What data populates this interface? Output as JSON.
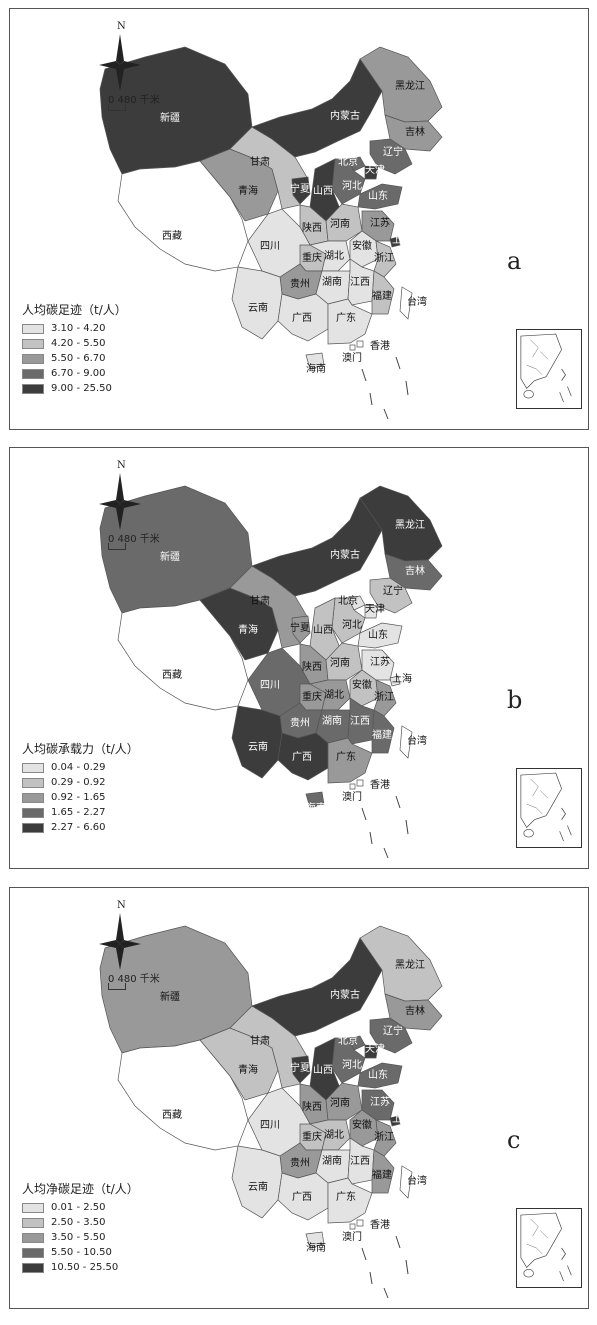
{
  "compass_label": "N",
  "scale_label": "0 480 千米",
  "provinces": [
    "新疆",
    "西藏",
    "青海",
    "甘肃",
    "内蒙古",
    "黑龙江",
    "吉林",
    "辽宁",
    "北京",
    "天津",
    "河北",
    "山西",
    "山东",
    "宁夏",
    "陕西",
    "河南",
    "江苏",
    "安徽",
    "上海",
    "四川",
    "重庆",
    "湖北",
    "浙江",
    "贵州",
    "湖南",
    "江西",
    "福建",
    "云南",
    "广西",
    "广东",
    "台湾",
    "香港",
    "澳门",
    "海南"
  ],
  "panels": [
    {
      "letter": "a",
      "legend_title": "人均碳足迹（t/人）",
      "legend": [
        {
          "label": "3.10 - 4.20",
          "color": "#e3e3e3"
        },
        {
          "label": "4.20 - 5.50",
          "color": "#c2c2c2"
        },
        {
          "label": "5.50 - 6.70",
          "color": "#999999"
        },
        {
          "label": "6.70 - 9.00",
          "color": "#6a6a6a"
        },
        {
          "label": "9.00 - 25.50",
          "color": "#3c3c3c"
        }
      ],
      "classes": {
        "新疆": 5,
        "西藏": 0,
        "青海": 3,
        "甘肃": 2,
        "内蒙古": 5,
        "黑龙江": 3,
        "吉林": 3,
        "辽宁": 4,
        "北京": 4,
        "天津": 5,
        "河北": 4,
        "山西": 5,
        "山东": 4,
        "宁夏": 5,
        "陕西": 2,
        "河南": 2,
        "江苏": 3,
        "安徽": 1,
        "上海": 5,
        "四川": 1,
        "重庆": 2,
        "湖北": 1,
        "浙江": 2,
        "贵州": 3,
        "湖南": 1,
        "江西": 1,
        "福建": 2,
        "云南": 1,
        "广西": 1,
        "广东": 1,
        "台湾": 0,
        "香港": 0,
        "澳门": 0,
        "海南": 1
      }
    },
    {
      "letter": "b",
      "legend_title": "人均碳承载力（t/人）",
      "legend": [
        {
          "label": "0.04 - 0.29",
          "color": "#e3e3e3"
        },
        {
          "label": "0.29 - 0.92",
          "color": "#c2c2c2"
        },
        {
          "label": "0.92 - 1.65",
          "color": "#999999"
        },
        {
          "label": "1.65 - 2.27",
          "color": "#6a6a6a"
        },
        {
          "label": "2.27 - 6.60",
          "color": "#3c3c3c"
        }
      ],
      "classes": {
        "新疆": 4,
        "西藏": 0,
        "青海": 5,
        "甘肃": 3,
        "内蒙古": 5,
        "黑龙江": 5,
        "吉林": 4,
        "辽宁": 2,
        "北京": 1,
        "天津": 1,
        "河北": 2,
        "山西": 2,
        "山东": 1,
        "宁夏": 3,
        "陕西": 3,
        "河南": 2,
        "江苏": 1,
        "安徽": 2,
        "上海": 1,
        "四川": 4,
        "重庆": 3,
        "湖北": 3,
        "浙江": 3,
        "贵州": 4,
        "湖南": 4,
        "江西": 4,
        "福建": 4,
        "云南": 5,
        "广西": 5,
        "广东": 3,
        "台湾": 0,
        "香港": 0,
        "澳门": 0,
        "海南": 4
      }
    },
    {
      "letter": "c",
      "legend_title": "人均净碳足迹（t/人）",
      "legend": [
        {
          "label": "0.01 - 2.50",
          "color": "#e3e3e3"
        },
        {
          "label": "2.50 - 3.50",
          "color": "#c2c2c2"
        },
        {
          "label": "3.50 - 5.50",
          "color": "#999999"
        },
        {
          "label": "5.50 - 10.50",
          "color": "#6a6a6a"
        },
        {
          "label": "10.50 - 25.50",
          "color": "#3c3c3c"
        }
      ],
      "classes": {
        "新疆": 3,
        "西藏": 0,
        "青海": 2,
        "甘肃": 2,
        "内蒙古": 5,
        "黑龙江": 2,
        "吉林": 3,
        "辽宁": 4,
        "北京": 4,
        "天津": 5,
        "河北": 4,
        "山西": 5,
        "山东": 4,
        "宁夏": 5,
        "陕西": 3,
        "河南": 3,
        "江苏": 4,
        "安徽": 3,
        "上海": 5,
        "四川": 1,
        "重庆": 2,
        "湖北": 2,
        "浙江": 3,
        "贵州": 3,
        "湖南": 1,
        "江西": 1,
        "福建": 3,
        "云南": 1,
        "广西": 1,
        "广东": 1,
        "台湾": 0,
        "香港": 0,
        "澳门": 0,
        "海南": 1
      }
    }
  ]
}
